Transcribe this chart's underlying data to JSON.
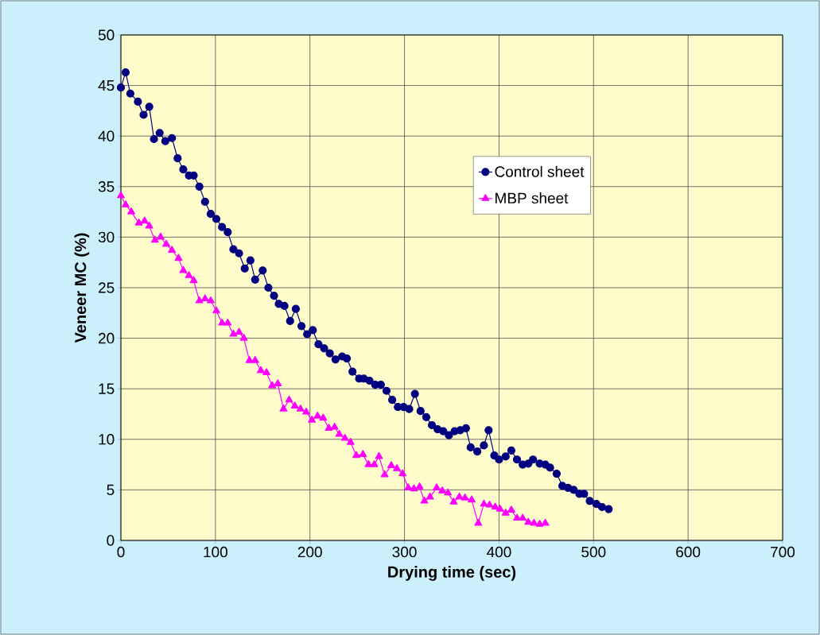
{
  "chart_data": {
    "type": "line",
    "xlabel": "Drying time (sec)",
    "ylabel": "Veneer MC (%)",
    "xlim": [
      0,
      700
    ],
    "xticks": [
      0,
      100,
      200,
      300,
      400,
      500,
      600,
      700
    ],
    "ylim": [
      0,
      50
    ],
    "yticks": [
      0,
      5,
      10,
      15,
      20,
      25,
      30,
      35,
      40,
      45,
      50
    ],
    "grid": true,
    "legend": "top right",
    "line_style": "solid",
    "series": [
      {
        "name": "Control sheet",
        "color": "#000080",
        "marker": "circle",
        "x": [
          0,
          5,
          10,
          18,
          24,
          30,
          35,
          41,
          47,
          54,
          60,
          66,
          72,
          77,
          83,
          89,
          95,
          101,
          107,
          113,
          119,
          125,
          131,
          137,
          142,
          150,
          156,
          162,
          167,
          173,
          179,
          185,
          191,
          197,
          203,
          209,
          215,
          221,
          227,
          234,
          239,
          245,
          252,
          257,
          263,
          269,
          275,
          281,
          287,
          293,
          299,
          305,
          311,
          317,
          323,
          329,
          335,
          341,
          347,
          353,
          359,
          365,
          370,
          377,
          384,
          389,
          395,
          400,
          407,
          413,
          419,
          425,
          431,
          436,
          443,
          449,
          454,
          461,
          467,
          473,
          479,
          485,
          490,
          496,
          503,
          509,
          516
        ],
        "values": [
          44.8,
          46.3,
          44.2,
          43.4,
          42.1,
          42.9,
          39.7,
          40.3,
          39.5,
          39.8,
          37.8,
          36.7,
          36.1,
          36.1,
          35.0,
          33.5,
          32.3,
          31.8,
          31.0,
          30.5,
          28.8,
          28.4,
          26.9,
          27.7,
          25.8,
          26.7,
          25.0,
          24.2,
          23.4,
          23.2,
          21.7,
          22.9,
          21.2,
          20.4,
          20.8,
          19.4,
          19.0,
          18.5,
          17.9,
          18.2,
          18.0,
          16.7,
          16.0,
          16.0,
          15.8,
          15.4,
          15.4,
          14.8,
          13.9,
          13.2,
          13.2,
          13.0,
          14.5,
          12.8,
          12.2,
          11.4,
          11.0,
          10.8,
          10.4,
          10.8,
          10.9,
          11.1,
          9.2,
          8.8,
          9.4,
          10.9,
          8.4,
          8.0,
          8.3,
          8.9,
          8.0,
          7.5,
          7.6,
          8.0,
          7.6,
          7.5,
          7.2,
          6.6,
          5.4,
          5.2,
          5.0,
          4.6,
          4.6,
          3.9,
          3.6,
          3.3,
          3.1
        ]
      },
      {
        "name": "MBP sheet",
        "color": "#ff00ff",
        "marker": "triangle",
        "x": [
          0,
          5,
          11,
          19,
          25,
          30,
          36,
          42,
          48,
          54,
          61,
          66,
          72,
          77,
          83,
          89,
          95,
          101,
          107,
          113,
          119,
          125,
          130,
          136,
          142,
          148,
          154,
          160,
          166,
          172,
          178,
          184,
          190,
          196,
          202,
          208,
          214,
          220,
          226,
          231,
          237,
          243,
          249,
          256,
          262,
          268,
          273,
          279,
          286,
          292,
          298,
          304,
          310,
          316,
          321,
          327,
          334,
          340,
          346,
          352,
          358,
          364,
          371,
          378,
          384,
          390,
          396,
          401,
          407,
          413,
          419,
          425,
          431,
          437,
          443,
          449
        ],
        "values": [
          34.1,
          33.2,
          32.5,
          31.4,
          31.6,
          31.1,
          29.7,
          30.0,
          29.3,
          28.7,
          27.9,
          26.7,
          26.2,
          25.7,
          23.7,
          23.9,
          23.7,
          22.7,
          21.5,
          21.5,
          20.4,
          20.6,
          20.0,
          17.8,
          17.8,
          16.8,
          16.6,
          15.3,
          15.5,
          13.0,
          13.9,
          13.3,
          13.0,
          12.7,
          11.9,
          12.3,
          12.1,
          11.1,
          11.2,
          10.5,
          10.1,
          9.7,
          8.4,
          8.5,
          7.5,
          7.5,
          8.3,
          6.5,
          7.4,
          7.1,
          6.6,
          5.2,
          5.1,
          5.3,
          3.9,
          4.3,
          5.2,
          4.9,
          4.7,
          3.8,
          4.3,
          4.2,
          4.0,
          1.7,
          3.6,
          3.5,
          3.3,
          3.1,
          2.7,
          3.0,
          2.2,
          2.2,
          1.8,
          1.7,
          1.6,
          1.7
        ]
      }
    ]
  }
}
